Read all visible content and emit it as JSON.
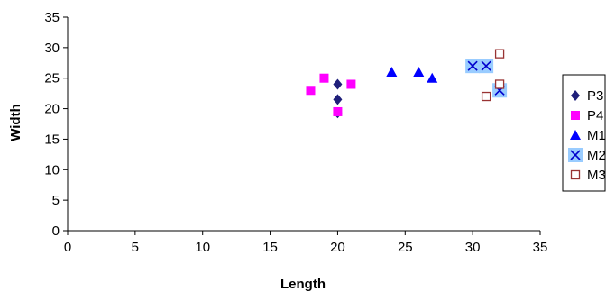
{
  "chart_data": {
    "type": "scatter",
    "xlabel": "Length",
    "ylabel": "Width",
    "xlim": [
      0,
      35
    ],
    "ylim": [
      0,
      35
    ],
    "xticks": [
      "0",
      "5",
      "10",
      "15",
      "20",
      "25",
      "30",
      "35"
    ],
    "yticks": [
      "0",
      "5",
      "10",
      "15",
      "20",
      "25",
      "30",
      "35"
    ],
    "grid": false,
    "legend": "right",
    "series": [
      {
        "name": "P3",
        "marker": "diamond",
        "color": "#1F1F7A",
        "points": [
          [
            20,
            24
          ],
          [
            20,
            21.5
          ],
          [
            20,
            19.3
          ]
        ]
      },
      {
        "name": "P4",
        "marker": "square",
        "color": "#FF00FF",
        "points": [
          [
            18,
            23
          ],
          [
            19,
            25
          ],
          [
            20,
            19.5
          ],
          [
            21,
            24
          ]
        ]
      },
      {
        "name": "M1",
        "marker": "triangle",
        "color": "#0000FF",
        "points": [
          [
            24,
            26
          ],
          [
            26,
            26
          ],
          [
            27,
            25
          ]
        ]
      },
      {
        "name": "M2",
        "marker": "x-box",
        "color": "#0000CC",
        "fill": "#99CCFF",
        "points": [
          [
            30,
            27
          ],
          [
            31,
            27
          ],
          [
            32,
            23
          ]
        ]
      },
      {
        "name": "M3",
        "marker": "open-square",
        "color": "#993333",
        "points": [
          [
            32,
            29
          ],
          [
            32,
            24
          ],
          [
            31,
            22
          ]
        ]
      }
    ]
  }
}
